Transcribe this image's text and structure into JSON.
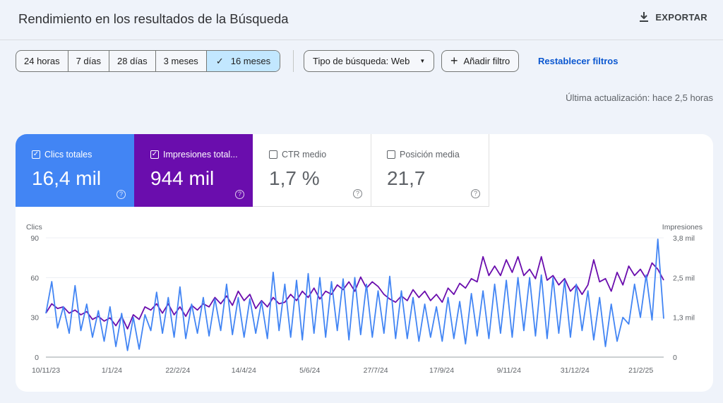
{
  "header": {
    "title": "Rendimiento en los resultados de la Búsqueda",
    "export_label": "EXPORTAR",
    "export_icon": "download-icon"
  },
  "filters": {
    "ranges": [
      "24 horas",
      "7 días",
      "28 días",
      "3 meses",
      "16 meses"
    ],
    "selected_range": "16 meses",
    "search_type": "Tipo de búsqueda: Web",
    "add_filter": "Añadir filtro",
    "reset": "Restablecer filtros"
  },
  "updated": "Última actualización: hace 2,5 horas",
  "metrics": [
    {
      "label": "Clics totales",
      "value": "16,4 mil",
      "checked": true,
      "color": "#4285f4"
    },
    {
      "label": "Impresiones total...",
      "value": "944 mil",
      "checked": true,
      "color": "#6a0dad"
    },
    {
      "label": "CTR medio",
      "value": "1,7 %",
      "checked": false
    },
    {
      "label": "Posición media",
      "value": "21,7",
      "checked": false
    }
  ],
  "chart_data": {
    "type": "line",
    "ylabel_left": "Clics",
    "ylabel_right": "Impresiones",
    "yticks_left": [
      "0",
      "30",
      "60",
      "90"
    ],
    "ylim_left": [
      0,
      90
    ],
    "yticks_right": [
      "0",
      "1,3 mil",
      "2,5 mil",
      "3,8 mil"
    ],
    "ylim_right": [
      0,
      3800
    ],
    "xticks": [
      "10/11/23",
      "1/1/24",
      "22/2/24",
      "14/4/24",
      "5/6/24",
      "27/7/24",
      "17/9/24",
      "9/11/24",
      "31/12/24",
      "21/2/25"
    ],
    "x_range": [
      "2023-11-10",
      "2025-03-11"
    ],
    "grid": true,
    "series": [
      {
        "name": "Clics",
        "axis": "left",
        "color": "#4285f4",
        "values": [
          33,
          57,
          22,
          38,
          18,
          54,
          20,
          40,
          15,
          35,
          12,
          38,
          8,
          33,
          5,
          30,
          6,
          32,
          20,
          49,
          18,
          45,
          15,
          53,
          14,
          40,
          18,
          45,
          16,
          44,
          20,
          55,
          17,
          45,
          15,
          44,
          18,
          42,
          14,
          64,
          20,
          55,
          15,
          58,
          13,
          63,
          18,
          60,
          15,
          57,
          20,
          59,
          13,
          60,
          17,
          55,
          15,
          50,
          18,
          61,
          14,
          50,
          14,
          45,
          12,
          40,
          15,
          38,
          12,
          45,
          14,
          42,
          10,
          48,
          16,
          50,
          14,
          55,
          18,
          58,
          15,
          60,
          20,
          60,
          16,
          62,
          14,
          60,
          18,
          58,
          15,
          55,
          20,
          50,
          13,
          45,
          8,
          40,
          12,
          30,
          25,
          55,
          30,
          62,
          28,
          89,
          29
        ]
      },
      {
        "name": "Impresiones",
        "axis": "right",
        "color": "#6a0dad",
        "values": [
          1400,
          1700,
          1550,
          1600,
          1400,
          1500,
          1350,
          1450,
          1200,
          1300,
          1150,
          1250,
          1000,
          1300,
          900,
          1350,
          1200,
          1600,
          1500,
          1700,
          1400,
          1700,
          1350,
          1600,
          1300,
          1650,
          1500,
          1700,
          1600,
          1900,
          1700,
          1950,
          1650,
          2100,
          1800,
          2000,
          1550,
          1800,
          1600,
          1900,
          1700,
          1750,
          2000,
          1800,
          2100,
          1900,
          2200,
          1850,
          2100,
          2000,
          2300,
          2150,
          2400,
          2100,
          2550,
          2200,
          2400,
          2250,
          2000,
          1850,
          1750,
          1950,
          1800,
          2150,
          1900,
          2100,
          1800,
          2000,
          1750,
          2200,
          2000,
          2350,
          2200,
          2500,
          2400,
          3200,
          2600,
          2900,
          2600,
          3100,
          2700,
          3200,
          2600,
          2800,
          2500,
          3200,
          2450,
          2600,
          2300,
          2500,
          2100,
          2300,
          2000,
          2300,
          3100,
          2400,
          2500,
          2100,
          2700,
          2300,
          2900,
          2600,
          2800,
          2500,
          3000,
          2800,
          2450
        ]
      }
    ]
  }
}
